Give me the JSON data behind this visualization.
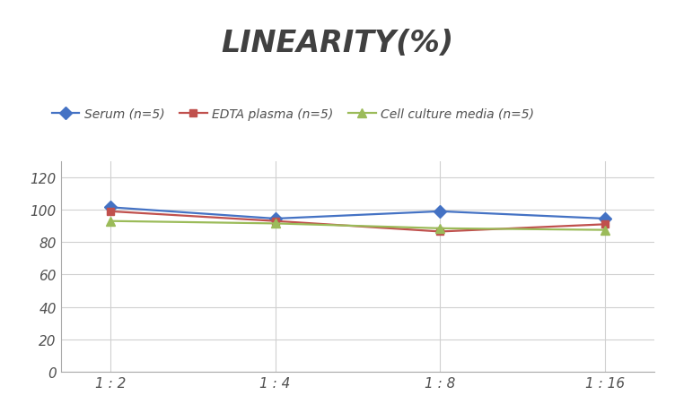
{
  "title": "LINEARITY(%)",
  "title_fontsize": 24,
  "title_fontstyle": "italic",
  "title_fontweight": "bold",
  "title_color": "#404040",
  "x_labels": [
    "1 : 2",
    "1 : 4",
    "1 : 8",
    "1 : 16"
  ],
  "x_positions": [
    0,
    1,
    2,
    3
  ],
  "ylim": [
    0,
    130
  ],
  "yticks": [
    0,
    20,
    40,
    60,
    80,
    100,
    120
  ],
  "series": [
    {
      "label": "Serum (n=5)",
      "values": [
        101.5,
        94.5,
        99.0,
        94.5
      ],
      "color": "#4472C4",
      "marker": "D",
      "marker_size": 7,
      "linewidth": 1.6
    },
    {
      "label": "EDTA plasma (n=5)",
      "values": [
        99.0,
        93.0,
        86.5,
        91.0
      ],
      "color": "#C0504D",
      "marker": "s",
      "marker_size": 6,
      "linewidth": 1.6
    },
    {
      "label": "Cell culture media (n=5)",
      "values": [
        93.0,
        91.5,
        88.5,
        87.5
      ],
      "color": "#9BBB59",
      "marker": "^",
      "marker_size": 7,
      "linewidth": 1.6
    }
  ],
  "legend_fontsize": 10,
  "tick_fontsize": 11,
  "grid_color": "#D0D0D0",
  "background_color": "#FFFFFF",
  "spine_color": "#AAAAAA"
}
